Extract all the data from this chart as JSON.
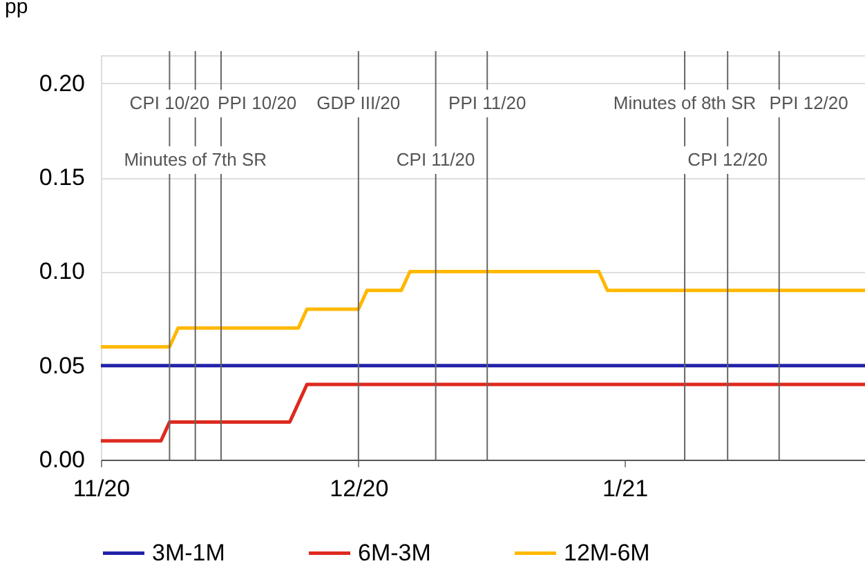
{
  "chart_data": {
    "type": "line",
    "ylabel": "pp",
    "xlim": [
      "2020-11-01",
      "2021-01-29"
    ],
    "xticks": [
      {
        "value": "2020-11-01",
        "label": "11/20"
      },
      {
        "value": "2020-12-01",
        "label": "12/20"
      },
      {
        "value": "2021-01-01",
        "label": "1/21"
      }
    ],
    "ylim": [
      0,
      0.215
    ],
    "yticks": [
      {
        "value": 0,
        "label": "0.00"
      },
      {
        "value": 0.05,
        "label": "0.05"
      },
      {
        "value": 0.1,
        "label": "0.10"
      },
      {
        "value": 0.15,
        "label": "0.15"
      },
      {
        "value": 0.2,
        "label": "0.20"
      }
    ],
    "grid": "y",
    "legend": "bottom",
    "marker": "none",
    "line_style": "solid",
    "series": [
      {
        "name": "3M-1M",
        "color": "#2222aa",
        "x": [
          "2020-11-01",
          "2021-01-29"
        ],
        "values": [
          0.05,
          0.05
        ]
      },
      {
        "name": "6M-3M",
        "color": "#dd2a1e",
        "x": [
          "2020-11-01",
          "2020-11-08",
          "2020-11-09",
          "2020-11-23",
          "2020-11-25",
          "2021-01-29"
        ],
        "values": [
          0.01,
          0.01,
          0.02,
          0.02,
          0.04,
          0.04
        ]
      },
      {
        "name": "12M-6M",
        "color": "#ffb800",
        "x": [
          "2020-11-01",
          "2020-11-09",
          "2020-11-10",
          "2020-11-24",
          "2020-11-25",
          "2020-12-01",
          "2020-12-02",
          "2020-12-06",
          "2020-12-07",
          "2020-12-29",
          "2020-12-30",
          "2021-01-29"
        ],
        "values": [
          0.06,
          0.06,
          0.07,
          0.07,
          0.08,
          0.08,
          0.09,
          0.09,
          0.1,
          0.1,
          0.09,
          0.09
        ]
      }
    ],
    "ref_lines": [
      {
        "axis": "x",
        "value": "2020-11-09",
        "label": "CPI 10/20"
      },
      {
        "axis": "x",
        "value": "2020-11-12",
        "label": "Minutes of 7th SR"
      },
      {
        "axis": "x",
        "value": "2020-11-15",
        "label": "PPI 10/20"
      },
      {
        "axis": "x",
        "value": "2020-12-01",
        "label": "GDP III/20"
      },
      {
        "axis": "x",
        "value": "2020-12-10",
        "label": "CPI 11/20"
      },
      {
        "axis": "x",
        "value": "2020-12-16",
        "label": "PPI 11/20"
      },
      {
        "axis": "x",
        "value": "2021-01-08",
        "label": "Minutes of 8th SR"
      },
      {
        "axis": "x",
        "value": "2021-01-13",
        "label": "CPI 12/20"
      },
      {
        "axis": "x",
        "value": "2021-01-19",
        "label": "PPI 12/20"
      }
    ]
  }
}
